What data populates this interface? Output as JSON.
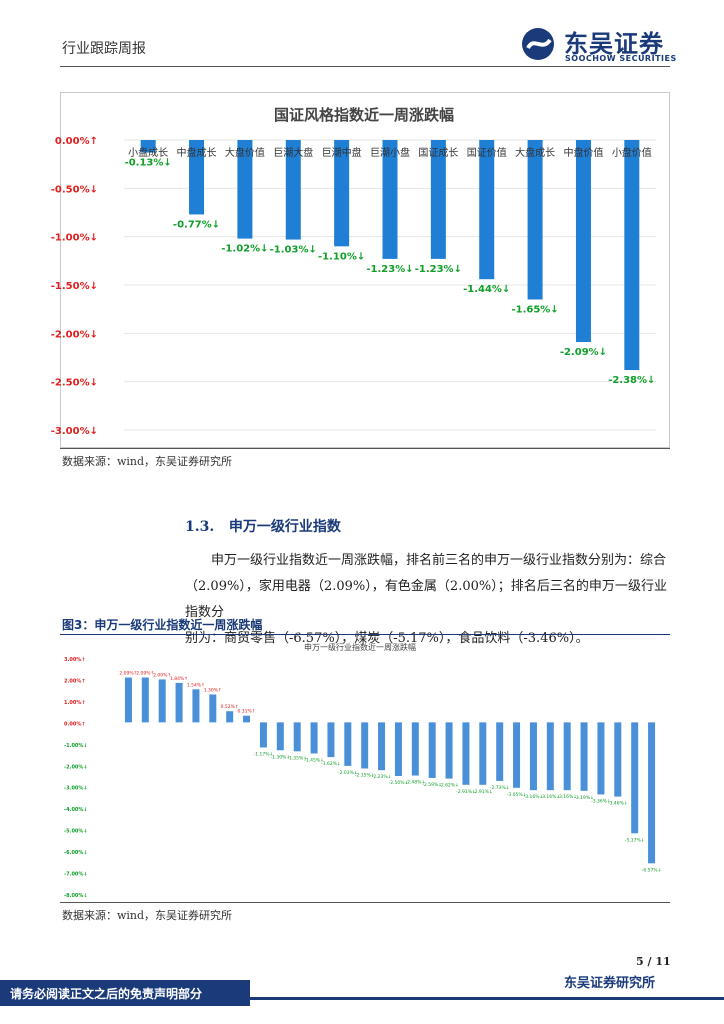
{
  "header": {
    "title": "行业跟踪周报",
    "brand_cn": "东吴证券",
    "brand_en": "SOOCHOW SECURITIES",
    "brand_color": "#1a3a7a"
  },
  "chart1": {
    "source": "数据来源：wind，东吴证券研究所",
    "chart_data": {
      "type": "bar",
      "title": "国证风格指数近一周涨跌幅",
      "categories": [
        "小盘成长",
        "中盘成长",
        "大盘价值",
        "巨潮大盘",
        "巨潮中盘",
        "巨潮小盘",
        "国证成长",
        "国证价值",
        "大盘成长",
        "中盘价值",
        "小盘价值"
      ],
      "values": [
        -0.13,
        -0.77,
        -1.02,
        -1.03,
        -1.1,
        -1.23,
        -1.23,
        -1.44,
        -1.65,
        -2.09,
        -2.38
      ],
      "data_labels": [
        "-0.13%↓",
        "-0.77%↓",
        "-1.02%↓",
        "-1.03%↓",
        "-1.10%↓",
        "-1.23%↓",
        "-1.23%↓",
        "-1.44%↓",
        "-1.65%↓",
        "-2.09%↓",
        "-2.38%↓"
      ],
      "y_ticks": [
        0,
        -0.5,
        -1,
        -1.5,
        -2,
        -2.5,
        -3
      ],
      "y_tick_labels": [
        "0.00%↑",
        "-0.50%↓",
        "-1.00%↓",
        "-1.50%↓",
        "-2.00%↓",
        "-2.50%↓",
        "-3.00%↓"
      ],
      "ylim": [
        -3,
        0
      ],
      "bar_color": "#1f7fd4",
      "label_color": "#10a02a",
      "up_color": "#e02020"
    }
  },
  "section": {
    "number": "1.3.",
    "title": "申万一级行业指数",
    "line1": "申万一级行业指数近一周涨跌幅，排名前三名的申万一级行业指数分别为：综合",
    "line2": "（2.09%），家用电器（2.09%），有色金属（2.00%）；排名后三名的申万一级行业指数分",
    "line3": "别为：商贸零售（-6.57%），煤炭（-5.17%），食品饮料（-3.46%）。"
  },
  "figure3": {
    "label": "图3：申万一级行业指数近一周涨跌幅",
    "source": "数据来源：wind，东吴证券研究所",
    "chart_data": {
      "type": "bar",
      "title": "申万一级行业指数近一周涨跌幅",
      "values": [
        2.09,
        2.09,
        2.0,
        1.84,
        1.54,
        1.3,
        0.52,
        0.31,
        -1.17,
        -1.3,
        -1.35,
        -1.45,
        -1.62,
        -2.03,
        -2.15,
        -2.23,
        -2.5,
        -2.48,
        -2.59,
        -2.62,
        -2.91,
        -2.91,
        -2.73,
        -3.05,
        -3.16,
        -3.16,
        -3.16,
        -3.19,
        -3.36,
        -3.46,
        -5.17,
        -6.57
      ],
      "y_ticks": [
        3,
        2,
        1,
        0,
        -1,
        -2,
        -3,
        -4,
        -5,
        -6,
        -7,
        -8
      ],
      "y_tick_labels": [
        "3.00%↑",
        "2.00%↑",
        "1.00%↑",
        "0.00%↑",
        "-1.00%↓",
        "-2.00%↓",
        "-3.00%↓",
        "-4.00%↓",
        "-5.00%↓",
        "-6.00%↓",
        "-7.00%↓",
        "-8.00%↓"
      ],
      "ylim": [
        -8,
        3
      ],
      "bar_color": "#4a90d9",
      "pos_label_color": "#e02020",
      "neg_label_color": "#10a02a"
    }
  },
  "footer": {
    "page": "5 / 11",
    "disclaimer": "请务必阅读正文之后的免责声明部分",
    "org": "东吴证券研究所"
  }
}
